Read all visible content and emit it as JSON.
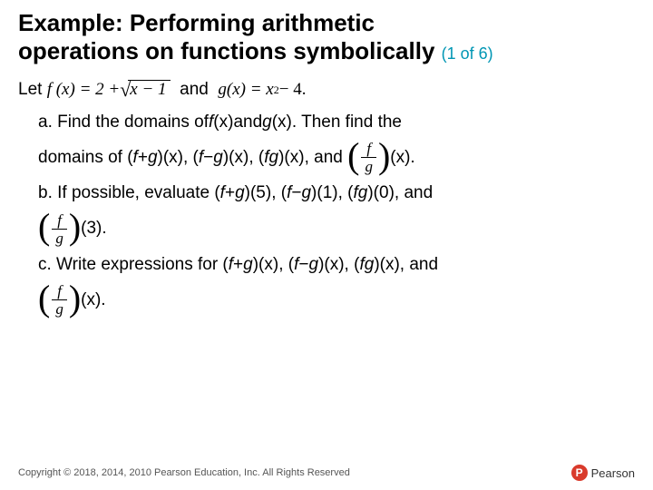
{
  "title": {
    "line1": "Example: Performing arithmetic",
    "line2_a": "operations on functions symbolically",
    "pager": "(1 of 6)"
  },
  "intro": {
    "let": "Let",
    "f_lhs": "f (x) = 2 + ",
    "sqrt_inner": "x − 1",
    "and": "and",
    "g_lhs": "g(x) = x",
    "g_exp": "2",
    "g_rhs": " − 4."
  },
  "a": {
    "line1_pre": "a. Find the domains of ",
    "fx": "f",
    "of_x": "(x)",
    "and": " and ",
    "gx": "g",
    "gof_x": "(x). Then find the",
    "line2_pre": "domains of (",
    "plus": " + ",
    "minus": " − ",
    "close_x": ")(x), (",
    "fg_close": ")(x), and",
    "tail": "(x)."
  },
  "b": {
    "pre": "b. If possible, evaluate (",
    "f": "f",
    "g": "g",
    "plus": " + ",
    "minus": " − ",
    "arg5": ")(5), (",
    "arg1": ")(1), (",
    "arg0": ")(0), and",
    "tail": "(3)."
  },
  "c": {
    "pre": "c. Write expressions for (",
    "f": "f",
    "g": "g",
    "plus": " + ",
    "minus": " − ",
    "close_x": ")(x), (",
    "fg_close": ")(x), and",
    "tail": "(x)."
  },
  "frac": {
    "num": "f",
    "den": "g"
  },
  "footer": {
    "copyright": "Copyright © 2018, 2014, 2010 Pearson Education, Inc. All Rights Reserved",
    "logo_letter": "P",
    "logo_text": "Pearson"
  }
}
